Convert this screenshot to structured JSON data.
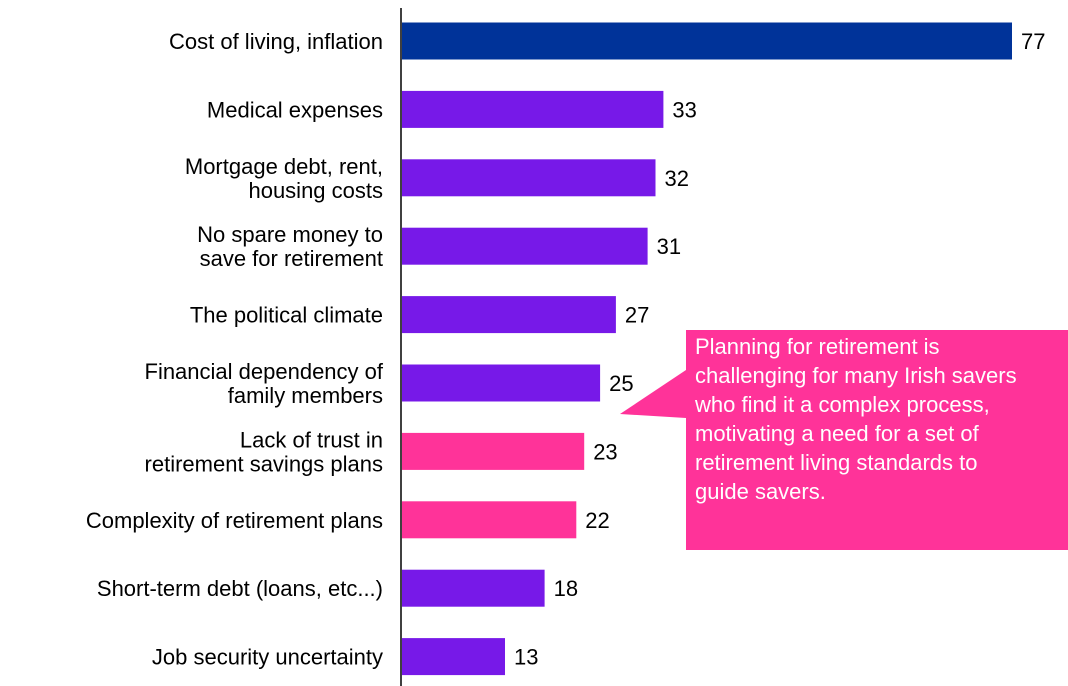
{
  "chart_data": {
    "type": "bar",
    "orientation": "horizontal",
    "categories": [
      [
        "Cost of living, inflation"
      ],
      [
        "Medical expenses"
      ],
      [
        "Mortgage debt, rent,",
        "housing costs"
      ],
      [
        "No spare money to",
        "save for retirement"
      ],
      [
        "The political climate"
      ],
      [
        "Financial dependency of",
        "family members"
      ],
      [
        "Lack of trust in",
        "retirement savings plans"
      ],
      [
        "Complexity of retirement plans"
      ],
      [
        "Short-term debt (loans, etc...)"
      ],
      [
        "Job security uncertainty"
      ]
    ],
    "values": [
      77,
      33,
      32,
      31,
      27,
      25,
      23,
      22,
      18,
      13
    ],
    "colors": [
      "#003399",
      "#7719e8",
      "#7719e8",
      "#7719e8",
      "#7719e8",
      "#7719e8",
      "#ff3399",
      "#ff3399",
      "#7719e8",
      "#7719e8"
    ],
    "xlim": [
      0,
      80
    ],
    "grid": false,
    "data_labels": true
  },
  "callout": {
    "lines": [
      "Planning for retirement is",
      "challenging for many Irish savers",
      "who find it a complex process,",
      "motivating a need for a set of",
      "retirement living standards to",
      "guide savers."
    ],
    "color": "#ff3399",
    "text_color": "#ffffff"
  }
}
